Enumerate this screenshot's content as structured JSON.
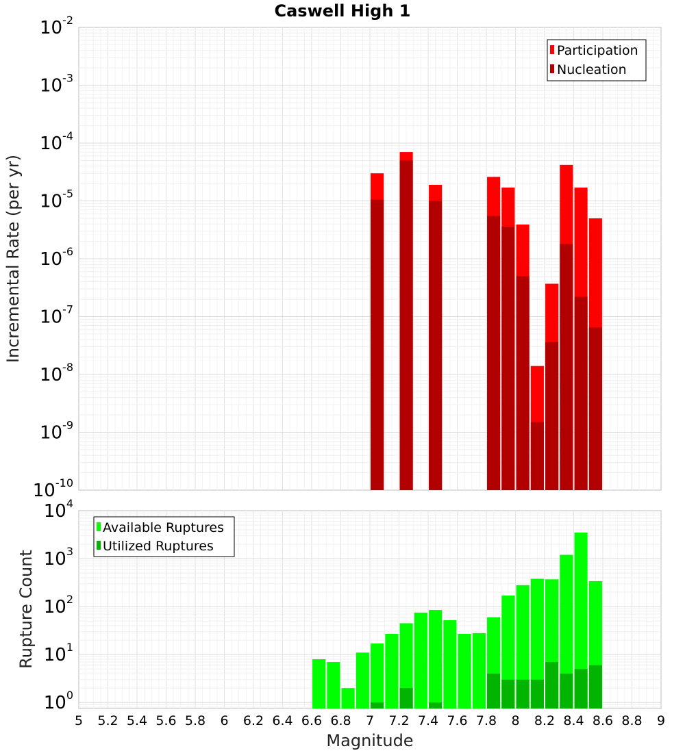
{
  "chart_data": [
    {
      "type": "bar",
      "title": "Caswell High 1",
      "xlabel": "",
      "ylabel": "Incremental Rate (per yr)",
      "y_scale": "log",
      "ylim": [
        1e-10,
        0.01
      ],
      "xlim": [
        5,
        9
      ],
      "grid": true,
      "legend_position": "top-right",
      "bar_width": 0.09,
      "y_ticks": [
        {
          "base": "10",
          "exp": "-10",
          "value": 1e-10
        },
        {
          "base": "10",
          "exp": "-9",
          "value": 1e-09
        },
        {
          "base": "10",
          "exp": "-8",
          "value": 1e-08
        },
        {
          "base": "10",
          "exp": "-7",
          "value": 1e-07
        },
        {
          "base": "10",
          "exp": "-6",
          "value": 1e-06
        },
        {
          "base": "10",
          "exp": "-5",
          "value": 1e-05
        },
        {
          "base": "10",
          "exp": "-4",
          "value": 0.0001
        },
        {
          "base": "10",
          "exp": "-3",
          "value": 0.001
        },
        {
          "base": "10",
          "exp": "-2",
          "value": 0.01
        }
      ],
      "series": [
        {
          "name": "Participation",
          "color": "#ff0000",
          "x": [
            7.05,
            7.25,
            7.45,
            7.85,
            7.95,
            8.05,
            8.15,
            8.25,
            8.35,
            8.45,
            8.55
          ],
          "values": [
            3e-05,
            7e-05,
            1.9e-05,
            2.6e-05,
            1.7e-05,
            3.9e-06,
            1.4e-08,
            3.7e-07,
            4.2e-05,
            1.7e-05,
            5e-06
          ]
        },
        {
          "name": "Nucleation",
          "color": "#b20000",
          "x": [
            7.05,
            7.25,
            7.45,
            7.85,
            7.95,
            8.05,
            8.15,
            8.25,
            8.35,
            8.45,
            8.55
          ],
          "values": [
            1.05e-05,
            5e-05,
            1e-05,
            5.5e-06,
            3.6e-06,
            5e-07,
            1.5e-09,
            3.6e-08,
            1.8e-06,
            2.2e-07,
            6.5e-08
          ]
        }
      ]
    },
    {
      "type": "bar",
      "title": "",
      "xlabel": "Magnitude",
      "ylabel": "Rupture Count",
      "y_scale": "log",
      "ylim": [
        0.75,
        10000
      ],
      "xlim": [
        5,
        9
      ],
      "grid": true,
      "legend_position": "top-left",
      "bar_width": 0.09,
      "x_ticks": [
        "5",
        "5.2",
        "5.4",
        "5.6",
        "5.8",
        "6",
        "6.2",
        "6.4",
        "6.6",
        "6.8",
        "7",
        "7.2",
        "7.4",
        "7.6",
        "7.8",
        "8",
        "8.2",
        "8.4",
        "8.6",
        "8.8",
        "9"
      ],
      "y_ticks": [
        {
          "base": "10",
          "exp": "0",
          "value": 1
        },
        {
          "base": "10",
          "exp": "1",
          "value": 10
        },
        {
          "base": "10",
          "exp": "2",
          "value": 100
        },
        {
          "base": "10",
          "exp": "3",
          "value": 1000
        },
        {
          "base": "10",
          "exp": "4",
          "value": 10000
        }
      ],
      "series": [
        {
          "name": "Available Ruptures",
          "color": "#00ff00",
          "x": [
            6.65,
            6.75,
            6.85,
            6.95,
            7.05,
            7.15,
            7.25,
            7.35,
            7.45,
            7.55,
            7.65,
            7.75,
            7.85,
            7.95,
            8.05,
            8.15,
            8.25,
            8.35,
            8.45,
            8.55
          ],
          "values": [
            8,
            7,
            2,
            11,
            17,
            27,
            45,
            75,
            85,
            52,
            27,
            28,
            60,
            170,
            280,
            380,
            370,
            1200,
            3500,
            340
          ]
        },
        {
          "name": "Utilized Ruptures",
          "color": "#00b400",
          "x": [
            7.05,
            7.25,
            7.45,
            7.85,
            7.95,
            8.05,
            8.15,
            8.25,
            8.35,
            8.45,
            8.55
          ],
          "values": [
            1,
            2,
            1,
            4,
            3,
            3,
            3,
            7,
            4,
            5,
            6
          ]
        }
      ]
    }
  ]
}
